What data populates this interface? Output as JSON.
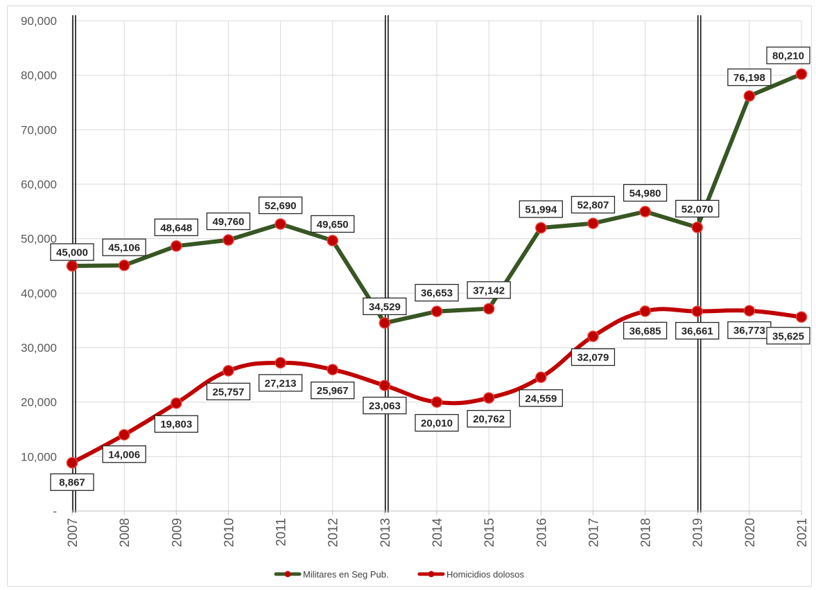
{
  "chart_data": {
    "type": "line",
    "title": "",
    "xlabel": "",
    "ylabel": "",
    "ylim": [
      0,
      90000
    ],
    "y_ticks": [
      "-",
      "10,000",
      "20,000",
      "30,000",
      "40,000",
      "50,000",
      "60,000",
      "70,000",
      "80,000",
      "90,000"
    ],
    "grid": true,
    "legend_position": "bottom",
    "categories": [
      "2007",
      "2008",
      "2009",
      "2010",
      "2011",
      "2012",
      "2013",
      "2014",
      "2015",
      "2016",
      "2017",
      "2018",
      "2019",
      "2020",
      "2021"
    ],
    "vertical_markers": [
      "2007",
      "2013",
      "2019"
    ],
    "series": [
      {
        "name": "Militares en Seg Pub.",
        "line_color": "#375623",
        "marker_color": "#c00000",
        "smooth": false,
        "values": [
          45000,
          45106,
          48648,
          49760,
          52690,
          49650,
          34529,
          36653,
          37142,
          51994,
          52807,
          54980,
          52070,
          76198,
          80210
        ],
        "labels": [
          "45,000",
          "45,106",
          "48,648",
          "49,760",
          "52,690",
          "49,650",
          "34,529",
          "36,653",
          "37,142",
          "51,994",
          "52,807",
          "54,980",
          "52,070",
          "76,198",
          "80,210"
        ]
      },
      {
        "name": "Homicidios dolosos",
        "line_color": "#c00000",
        "marker_color": "#c00000",
        "smooth": true,
        "values": [
          8867,
          14006,
          19803,
          25757,
          27213,
          25967,
          23063,
          20010,
          20762,
          24559,
          32079,
          36685,
          36661,
          36773,
          35625
        ],
        "labels": [
          "8,867",
          "14,006",
          "19,803",
          "25,757",
          "27,213",
          "25,967",
          "23,063",
          "20,010",
          "20,762",
          "24,559",
          "32,079",
          "36,685",
          "36,661",
          "36,773",
          "35,625"
        ]
      }
    ]
  }
}
